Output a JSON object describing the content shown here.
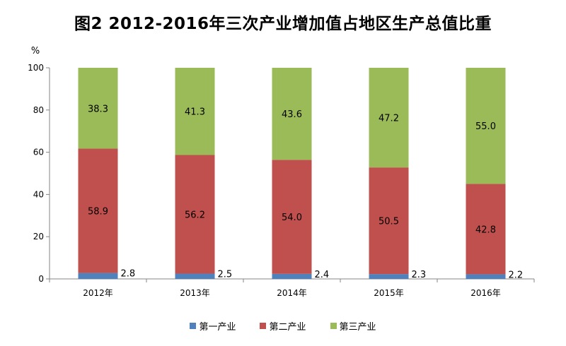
{
  "chart_data": {
    "type": "bar",
    "stacked": true,
    "title": "图2   2012-2016年三次产业增加值占地区生产总值比重",
    "ylabel": "%",
    "ylim": [
      0,
      100
    ],
    "yticks": [
      "0",
      "20",
      "40",
      "60",
      "80",
      "100"
    ],
    "categories": [
      "2012年",
      "2013年",
      "2014年",
      "2015年",
      "2016年"
    ],
    "series": [
      {
        "name": "第一产业",
        "color": "#4f81bd",
        "values": [
          2.8,
          2.5,
          2.4,
          2.3,
          2.2
        ],
        "labels": [
          "2.8",
          "2.5",
          "2.4",
          "2.3",
          "2.2"
        ]
      },
      {
        "name": "第二产业",
        "color": "#c0504d",
        "values": [
          58.9,
          56.2,
          54.0,
          50.5,
          42.8
        ],
        "labels": [
          "58.9",
          "56.2",
          "54.0",
          "50.5",
          "42.8"
        ]
      },
      {
        "name": "第三产业",
        "color": "#9bbb59",
        "values": [
          38.3,
          41.3,
          43.6,
          47.2,
          55.0
        ],
        "labels": [
          "38.3",
          "41.3",
          "43.6",
          "47.2",
          "55.0"
        ]
      }
    ],
    "grid": false,
    "legend": "bottom"
  }
}
